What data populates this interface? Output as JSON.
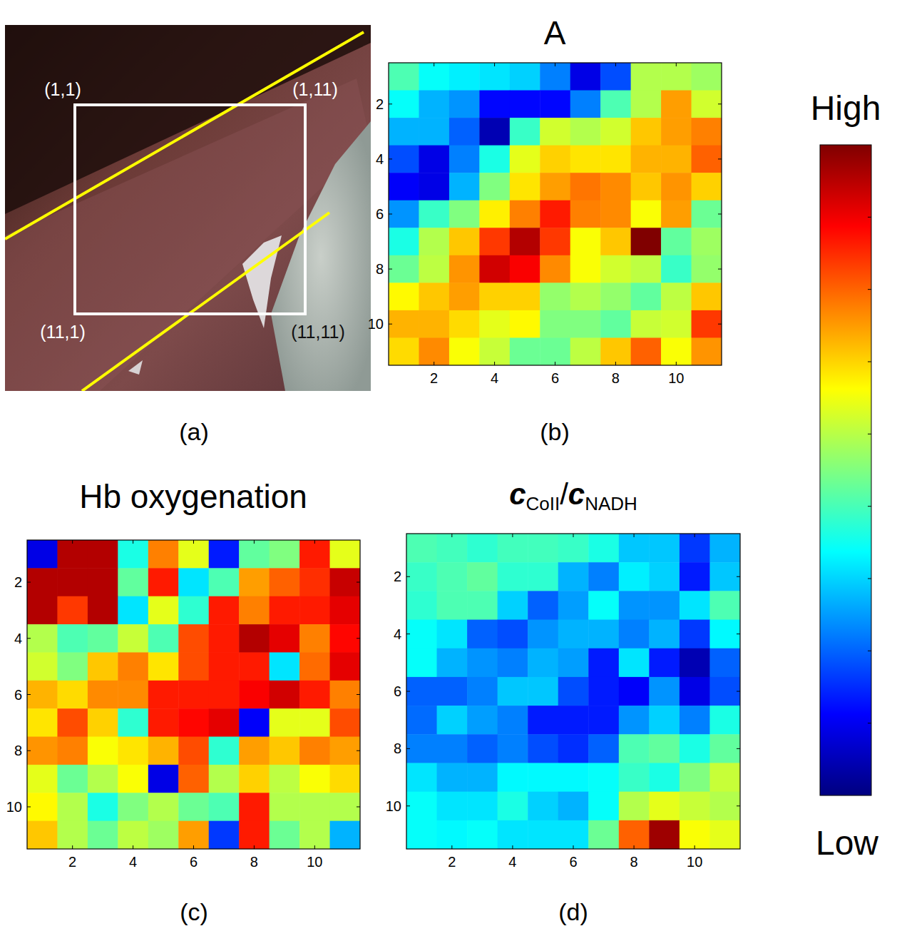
{
  "panel_labels": [
    "(a)",
    "(b)",
    "(c)",
    "(d)"
  ],
  "photo": {
    "corner_labels": [
      "(1,1)",
      "(1,11)",
      "(11,1)",
      "(11,11)"
    ]
  },
  "colorbar": {
    "range": [
      0,
      1
    ],
    "high_label": "High",
    "low_label": "Low"
  },
  "chart_data": [
    {
      "type": "heatmap",
      "title": "A",
      "xlim": [
        0.5,
        11.5
      ],
      "ylim": [
        11.5,
        0.5
      ],
      "xticks": [
        2,
        4,
        6,
        8,
        10
      ],
      "yticks": [
        2,
        4,
        6,
        8,
        10
      ],
      "cells": [
        [
          0.45,
          0.38,
          0.36,
          0.35,
          0.33,
          0.25,
          0.1,
          0.2,
          0.55,
          0.55,
          0.53
        ],
        [
          0.38,
          0.3,
          0.27,
          0.13,
          0.13,
          0.13,
          0.25,
          0.45,
          0.55,
          0.72,
          0.58
        ],
        [
          0.3,
          0.3,
          0.22,
          0.05,
          0.43,
          0.58,
          0.55,
          0.58,
          0.68,
          0.72,
          0.75
        ],
        [
          0.2,
          0.1,
          0.25,
          0.4,
          0.6,
          0.67,
          0.65,
          0.65,
          0.7,
          0.7,
          0.78
        ],
        [
          0.12,
          0.1,
          0.3,
          0.5,
          0.65,
          0.72,
          0.76,
          0.74,
          0.68,
          0.73,
          0.67
        ],
        [
          0.27,
          0.43,
          0.5,
          0.64,
          0.75,
          0.85,
          0.75,
          0.74,
          0.62,
          0.72,
          0.48
        ],
        [
          0.4,
          0.55,
          0.68,
          0.82,
          0.95,
          0.82,
          0.62,
          0.68,
          1.0,
          0.47,
          0.53
        ],
        [
          0.48,
          0.56,
          0.73,
          0.92,
          0.88,
          0.74,
          0.62,
          0.58,
          0.56,
          0.43,
          0.52
        ],
        [
          0.63,
          0.68,
          0.72,
          0.67,
          0.67,
          0.52,
          0.55,
          0.52,
          0.47,
          0.56,
          0.68
        ],
        [
          0.7,
          0.7,
          0.66,
          0.6,
          0.63,
          0.5,
          0.5,
          0.47,
          0.57,
          0.58,
          0.82
        ],
        [
          0.66,
          0.74,
          0.62,
          0.57,
          0.48,
          0.48,
          0.56,
          0.68,
          0.78,
          0.62,
          0.73
        ]
      ]
    },
    {
      "type": "heatmap",
      "title": "Hb oxygenation",
      "xlim": [
        0.5,
        11.5
      ],
      "ylim": [
        11.5,
        0.5
      ],
      "xticks": [
        2,
        4,
        6,
        8,
        10
      ],
      "yticks": [
        2,
        4,
        6,
        8,
        10
      ],
      "cells": [
        [
          0.1,
          0.95,
          0.95,
          0.4,
          0.75,
          0.6,
          0.15,
          0.47,
          0.5,
          0.85,
          0.6
        ],
        [
          0.95,
          0.95,
          0.95,
          0.47,
          0.85,
          0.35,
          0.45,
          0.72,
          0.78,
          0.83,
          0.93
        ],
        [
          0.95,
          0.82,
          0.95,
          0.35,
          0.6,
          0.42,
          0.85,
          0.75,
          0.85,
          0.85,
          0.9
        ],
        [
          0.55,
          0.45,
          0.47,
          0.57,
          0.45,
          0.8,
          0.85,
          0.95,
          0.9,
          0.75,
          0.87
        ],
        [
          0.58,
          0.5,
          0.68,
          0.75,
          0.65,
          0.8,
          0.85,
          0.85,
          0.35,
          0.77,
          0.9
        ],
        [
          0.7,
          0.66,
          0.74,
          0.74,
          0.85,
          0.85,
          0.85,
          0.88,
          0.92,
          0.85,
          0.75
        ],
        [
          0.65,
          0.8,
          0.67,
          0.42,
          0.85,
          0.87,
          0.9,
          0.12,
          0.6,
          0.6,
          0.8
        ],
        [
          0.73,
          0.75,
          0.62,
          0.65,
          0.7,
          0.8,
          0.42,
          0.72,
          0.68,
          0.75,
          0.72
        ],
        [
          0.6,
          0.48,
          0.55,
          0.62,
          0.1,
          0.78,
          0.55,
          0.67,
          0.56,
          0.62,
          0.66
        ],
        [
          0.63,
          0.55,
          0.4,
          0.5,
          0.55,
          0.48,
          0.45,
          0.85,
          0.55,
          0.55,
          0.55
        ],
        [
          0.68,
          0.55,
          0.48,
          0.56,
          0.53,
          0.72,
          0.18,
          0.85,
          0.48,
          0.55,
          0.3
        ]
      ]
    },
    {
      "type": "heatmap",
      "title_parts": [
        "c",
        "CoII",
        "/",
        "c",
        "NADH"
      ],
      "xlim": [
        0.5,
        11.5
      ],
      "ylim": [
        11.5,
        0.5
      ],
      "xticks": [
        2,
        4,
        6,
        8,
        10
      ],
      "yticks": [
        2,
        4,
        6,
        8,
        10
      ],
      "cells": [
        [
          0.45,
          0.44,
          0.42,
          0.44,
          0.44,
          0.43,
          0.4,
          0.32,
          0.32,
          0.18,
          0.3
        ],
        [
          0.43,
          0.45,
          0.47,
          0.42,
          0.42,
          0.3,
          0.25,
          0.36,
          0.33,
          0.15,
          0.32
        ],
        [
          0.42,
          0.45,
          0.45,
          0.33,
          0.22,
          0.28,
          0.38,
          0.27,
          0.27,
          0.35,
          0.45
        ],
        [
          0.38,
          0.35,
          0.22,
          0.2,
          0.27,
          0.3,
          0.3,
          0.25,
          0.3,
          0.18,
          0.37
        ],
        [
          0.38,
          0.3,
          0.27,
          0.25,
          0.3,
          0.28,
          0.15,
          0.35,
          0.15,
          0.05,
          0.22
        ],
        [
          0.22,
          0.22,
          0.25,
          0.32,
          0.32,
          0.2,
          0.15,
          0.12,
          0.27,
          0.1,
          0.2
        ],
        [
          0.23,
          0.33,
          0.28,
          0.25,
          0.15,
          0.15,
          0.15,
          0.27,
          0.33,
          0.25,
          0.4
        ],
        [
          0.25,
          0.25,
          0.22,
          0.25,
          0.2,
          0.17,
          0.22,
          0.45,
          0.47,
          0.4,
          0.47
        ],
        [
          0.35,
          0.3,
          0.3,
          0.37,
          0.37,
          0.37,
          0.38,
          0.43,
          0.4,
          0.5,
          0.57
        ],
        [
          0.38,
          0.35,
          0.35,
          0.4,
          0.33,
          0.3,
          0.38,
          0.55,
          0.6,
          0.57,
          0.55
        ],
        [
          0.38,
          0.37,
          0.38,
          0.35,
          0.35,
          0.35,
          0.48,
          0.78,
          0.97,
          0.62,
          0.6
        ]
      ]
    }
  ]
}
